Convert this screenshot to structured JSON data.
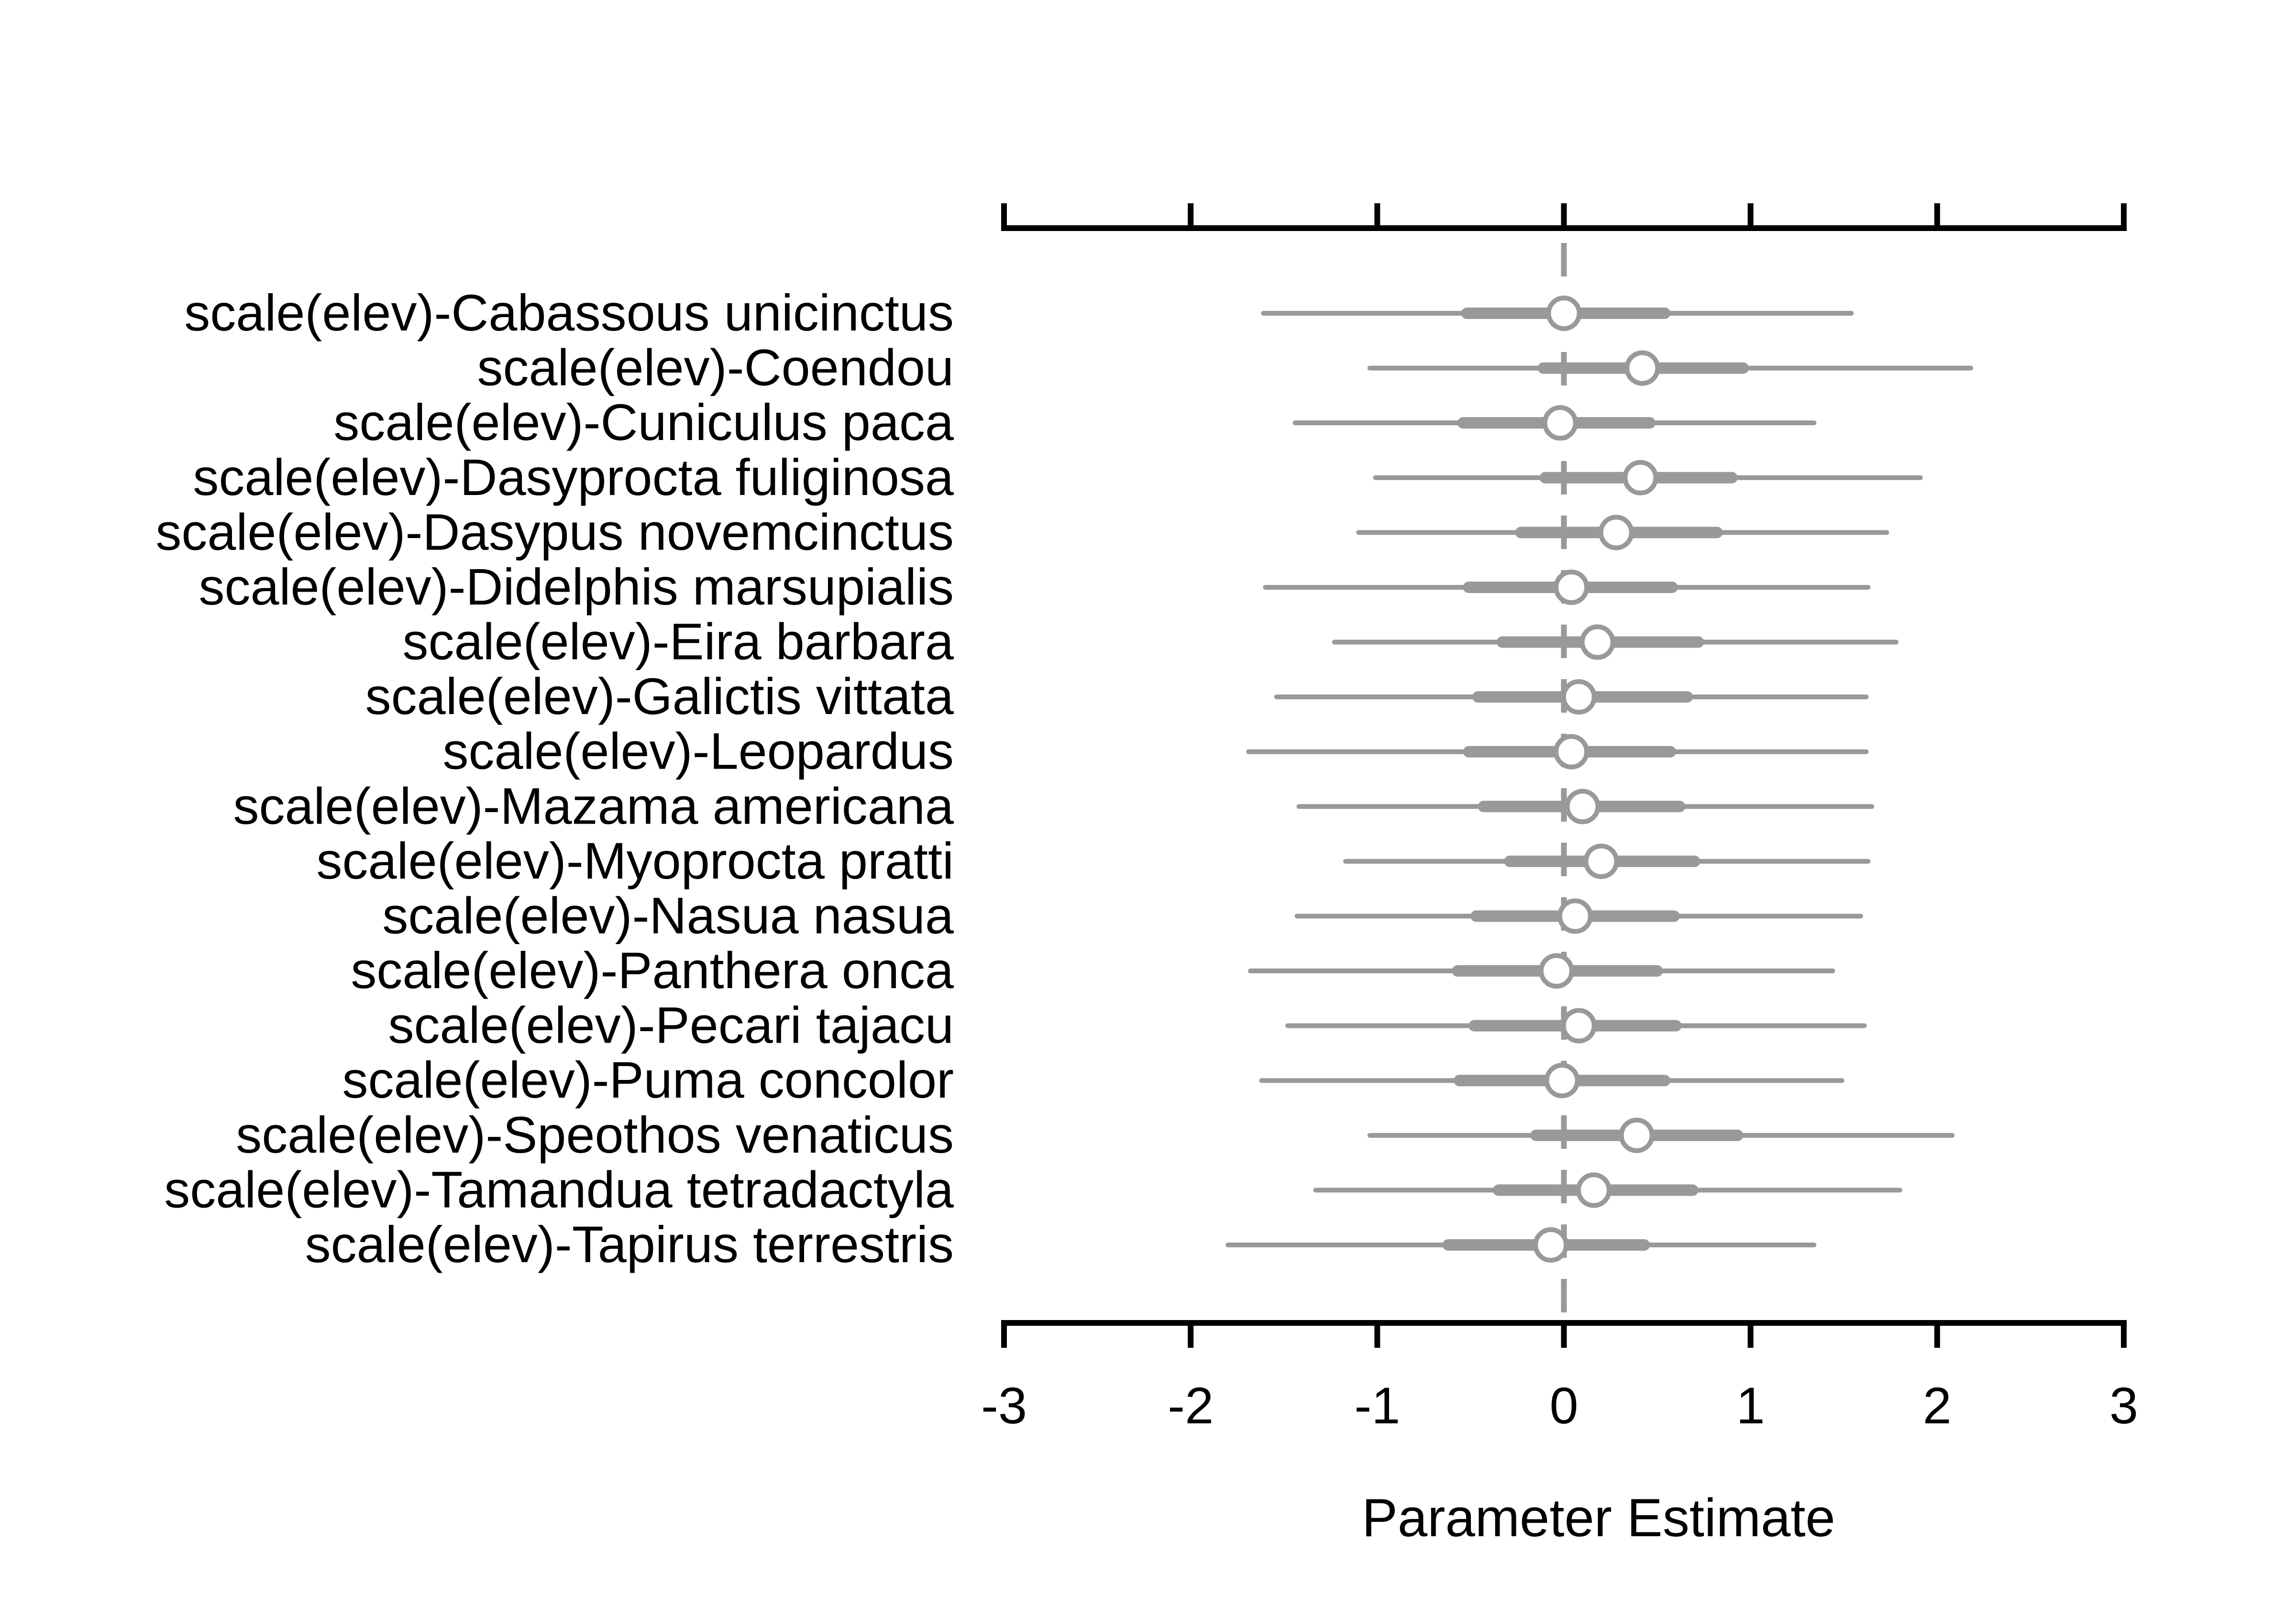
{
  "chart_data": {
    "type": "forest",
    "title": "",
    "xlabel": "Parameter Estimate",
    "ylabel": "",
    "xlim": [
      -3,
      3
    ],
    "xticks": [
      -3,
      -2,
      -1,
      0,
      1,
      2,
      3
    ],
    "xtick_labels": [
      "-3",
      "-2",
      "-1",
      "0",
      "1",
      "2",
      "3"
    ],
    "reference_line": 0,
    "grid": false,
    "colors": {
      "interval": "#999999",
      "axis": "#000000",
      "point_fill": "#ffffff"
    },
    "rows": [
      {
        "label": "scale(elev)-Cabassous unicinctus",
        "estimate": 0.0,
        "inner": [
          -0.52,
          0.54
        ],
        "outer": [
          -1.61,
          1.54
        ]
      },
      {
        "label": "scale(elev)-Coendou",
        "estimate": 0.42,
        "inner": [
          -0.11,
          0.96
        ],
        "outer": [
          -1.04,
          2.18
        ]
      },
      {
        "label": "scale(elev)-Cuniculus paca",
        "estimate": -0.02,
        "inner": [
          -0.54,
          0.46
        ],
        "outer": [
          -1.44,
          1.34
        ]
      },
      {
        "label": "scale(elev)-Dasyprocta fuliginosa",
        "estimate": 0.41,
        "inner": [
          -0.1,
          0.9
        ],
        "outer": [
          -1.01,
          1.91
        ]
      },
      {
        "label": "scale(elev)-Dasypus novemcinctus",
        "estimate": 0.28,
        "inner": [
          -0.23,
          0.82
        ],
        "outer": [
          -1.1,
          1.73
        ]
      },
      {
        "label": "scale(elev)-Didelphis marsupialis",
        "estimate": 0.04,
        "inner": [
          -0.51,
          0.58
        ],
        "outer": [
          -1.6,
          1.63
        ]
      },
      {
        "label": "scale(elev)-Eira barbara",
        "estimate": 0.18,
        "inner": [
          -0.33,
          0.72
        ],
        "outer": [
          -1.23,
          1.78
        ]
      },
      {
        "label": "scale(elev)-Galictis vittata",
        "estimate": 0.08,
        "inner": [
          -0.46,
          0.66
        ],
        "outer": [
          -1.54,
          1.62
        ]
      },
      {
        "label": "scale(elev)-Leopardus",
        "estimate": 0.04,
        "inner": [
          -0.51,
          0.57
        ],
        "outer": [
          -1.69,
          1.62
        ]
      },
      {
        "label": "scale(elev)-Mazama americana",
        "estimate": 0.1,
        "inner": [
          -0.43,
          0.62
        ],
        "outer": [
          -1.42,
          1.65
        ]
      },
      {
        "label": "scale(elev)-Myoprocta pratti",
        "estimate": 0.2,
        "inner": [
          -0.29,
          0.7
        ],
        "outer": [
          -1.17,
          1.63
        ]
      },
      {
        "label": "scale(elev)-Nasua nasua",
        "estimate": 0.06,
        "inner": [
          -0.47,
          0.59
        ],
        "outer": [
          -1.43,
          1.59
        ]
      },
      {
        "label": "scale(elev)-Panthera onca",
        "estimate": -0.04,
        "inner": [
          -0.57,
          0.5
        ],
        "outer": [
          -1.68,
          1.44
        ]
      },
      {
        "label": "scale(elev)-Pecari tajacu",
        "estimate": 0.08,
        "inner": [
          -0.48,
          0.6
        ],
        "outer": [
          -1.48,
          1.61
        ]
      },
      {
        "label": "scale(elev)-Puma concolor",
        "estimate": -0.01,
        "inner": [
          -0.56,
          0.54
        ],
        "outer": [
          -1.62,
          1.49
        ]
      },
      {
        "label": "scale(elev)-Speothos venaticus",
        "estimate": 0.39,
        "inner": [
          -0.15,
          0.93
        ],
        "outer": [
          -1.04,
          2.08
        ]
      },
      {
        "label": "scale(elev)-Tamandua tetradactyla",
        "estimate": 0.16,
        "inner": [
          -0.35,
          0.69
        ],
        "outer": [
          -1.33,
          1.8
        ]
      },
      {
        "label": "scale(elev)-Tapirus terrestris",
        "estimate": -0.07,
        "inner": [
          -0.62,
          0.43
        ],
        "outer": [
          -1.8,
          1.34
        ]
      }
    ]
  }
}
